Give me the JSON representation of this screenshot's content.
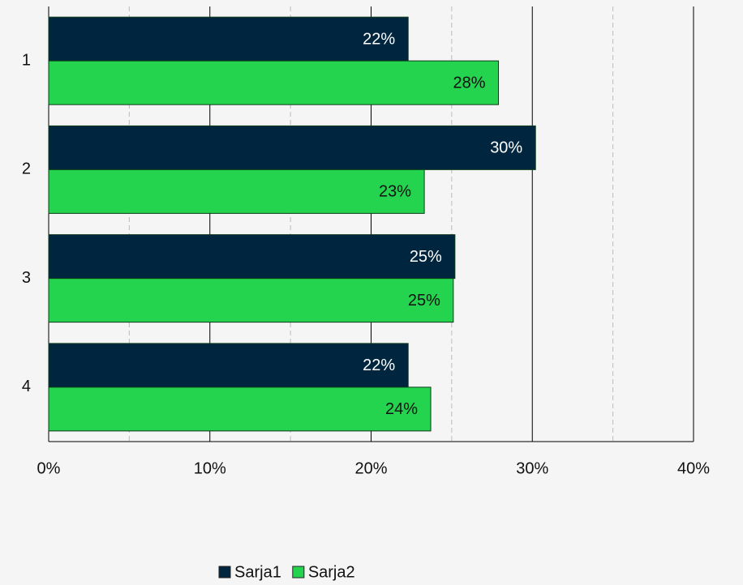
{
  "chart_data": {
    "type": "barh",
    "categories": [
      "1",
      "2",
      "3",
      "4"
    ],
    "series": [
      {
        "name": "Sarja1",
        "color": "#00263f",
        "label_color": "#ffffff",
        "values": [
          22.3,
          30.2,
          25.2,
          22.3
        ],
        "value_labels": [
          "22%",
          "30%",
          "25%",
          "22%"
        ]
      },
      {
        "name": "Sarja2",
        "color": "#25d44e",
        "label_color": "#111111",
        "values": [
          27.9,
          23.3,
          25.1,
          23.7
        ],
        "value_labels": [
          "28%",
          "23%",
          "25%",
          "24%"
        ]
      }
    ],
    "xlim": [
      0,
      40
    ],
    "xticks": [
      {
        "value": 0,
        "label": "0%"
      },
      {
        "value": 10,
        "label": "10%"
      },
      {
        "value": 20,
        "label": "20%"
      },
      {
        "value": 30,
        "label": "30%"
      },
      {
        "value": 40,
        "label": "40%"
      }
    ],
    "minor_xticks": [
      5,
      15,
      25,
      35
    ],
    "grid": true,
    "legend": "bottom"
  }
}
